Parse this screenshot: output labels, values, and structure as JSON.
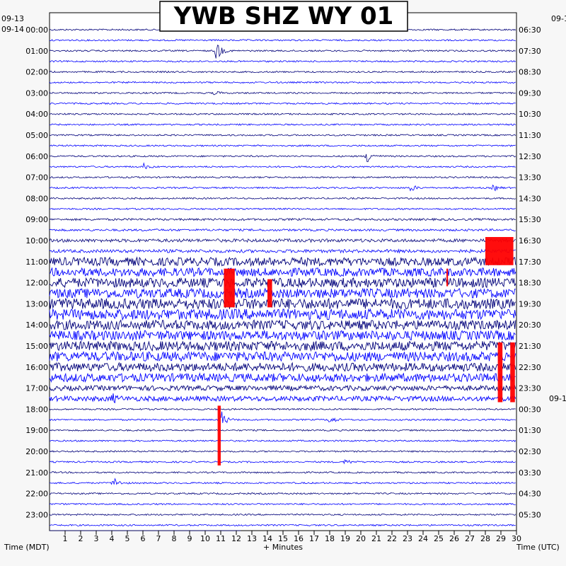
{
  "chart_data": {
    "type": "line",
    "title": "YWB SHZ WY 01",
    "xlabel": "+ Minutes",
    "ylabel_left": "Time (MDT)",
    "ylabel_right": "Time (UTC)",
    "x_ticks": [
      1,
      2,
      3,
      4,
      5,
      6,
      7,
      8,
      9,
      10,
      11,
      12,
      13,
      14,
      15,
      16,
      17,
      18,
      19,
      20,
      21,
      22,
      23,
      24,
      25,
      26,
      27,
      28,
      29,
      30
    ],
    "xlim": [
      0,
      30
    ],
    "date_labels_left": [
      "09-13",
      "09-14"
    ],
    "date_labels_right": [
      "09-1",
      "09-1"
    ],
    "left_hour_labels": [
      "00:00",
      "01:00",
      "02:00",
      "03:00",
      "04:00",
      "05:00",
      "06:00",
      "07:00",
      "08:00",
      "09:00",
      "10:00",
      "11:00",
      "12:00",
      "13:00",
      "14:00",
      "15:00",
      "16:00",
      "17:00",
      "18:00",
      "19:00",
      "20:00",
      "21:00",
      "22:00",
      "23:00"
    ],
    "right_hour_labels": [
      "06:30",
      "07:30",
      "08:30",
      "09:30",
      "10:30",
      "11:30",
      "12:30",
      "13:30",
      "14:30",
      "15:30",
      "16:30",
      "17:30",
      "18:30",
      "19:30",
      "20:30",
      "21:30",
      "22:30",
      "23:30",
      "00:30",
      "01:30",
      "02:30",
      "03:30",
      "04:30",
      "05:30"
    ],
    "trace_rows": 49,
    "trace_colors": [
      "#00007a",
      "#0000ff"
    ],
    "clip_color": "#ff0000",
    "noise_level_by_hour": [
      1,
      1,
      1,
      1,
      1,
      1,
      1,
      1,
      1,
      1.5,
      2.5,
      7,
      8,
      9,
      8,
      8,
      7,
      4,
      1,
      1,
      1,
      1,
      1,
      1
    ],
    "events": [
      {
        "row": 2,
        "minute": 10.7,
        "amplitude": 18
      },
      {
        "row": 6,
        "minute": 10.6,
        "amplitude": 3
      },
      {
        "row": 12,
        "minute": 20.4,
        "amplitude": 12
      },
      {
        "row": 13,
        "minute": 6.0,
        "amplitude": 5
      },
      {
        "row": 15,
        "minute": 23.2,
        "amplitude": 6
      },
      {
        "row": 15,
        "minute": 28.5,
        "amplitude": 5
      },
      {
        "row": 35,
        "minute": 4.0,
        "amplitude": 6
      },
      {
        "row": 37,
        "minute": 11.0,
        "amplitude": 16
      },
      {
        "row": 37,
        "minute": 18.0,
        "amplitude": 8
      },
      {
        "row": 41,
        "minute": 19.0,
        "amplitude": 5
      },
      {
        "row": 43,
        "minute": 4.1,
        "amplitude": 10
      }
    ],
    "clip_regions": [
      {
        "row_start": 20,
        "row_end": 22,
        "minute_start": 28.0,
        "minute_end": 29.8
      },
      {
        "row_start": 23,
        "row_end": 26,
        "minute_start": 11.2,
        "minute_end": 11.9
      },
      {
        "row_start": 24,
        "row_end": 26,
        "minute_start": 14.0,
        "minute_end": 14.3
      },
      {
        "row_start": 23,
        "row_end": 24,
        "minute_start": 25.5,
        "minute_end": 25.6
      },
      {
        "row_start": 30,
        "row_end": 35,
        "minute_start": 28.8,
        "minute_end": 29.1
      },
      {
        "row_start": 30,
        "row_end": 35,
        "minute_start": 29.6,
        "minute_end": 29.9
      },
      {
        "row_start": 36,
        "row_end": 41,
        "minute_start": 10.8,
        "minute_end": 11.0
      }
    ]
  }
}
